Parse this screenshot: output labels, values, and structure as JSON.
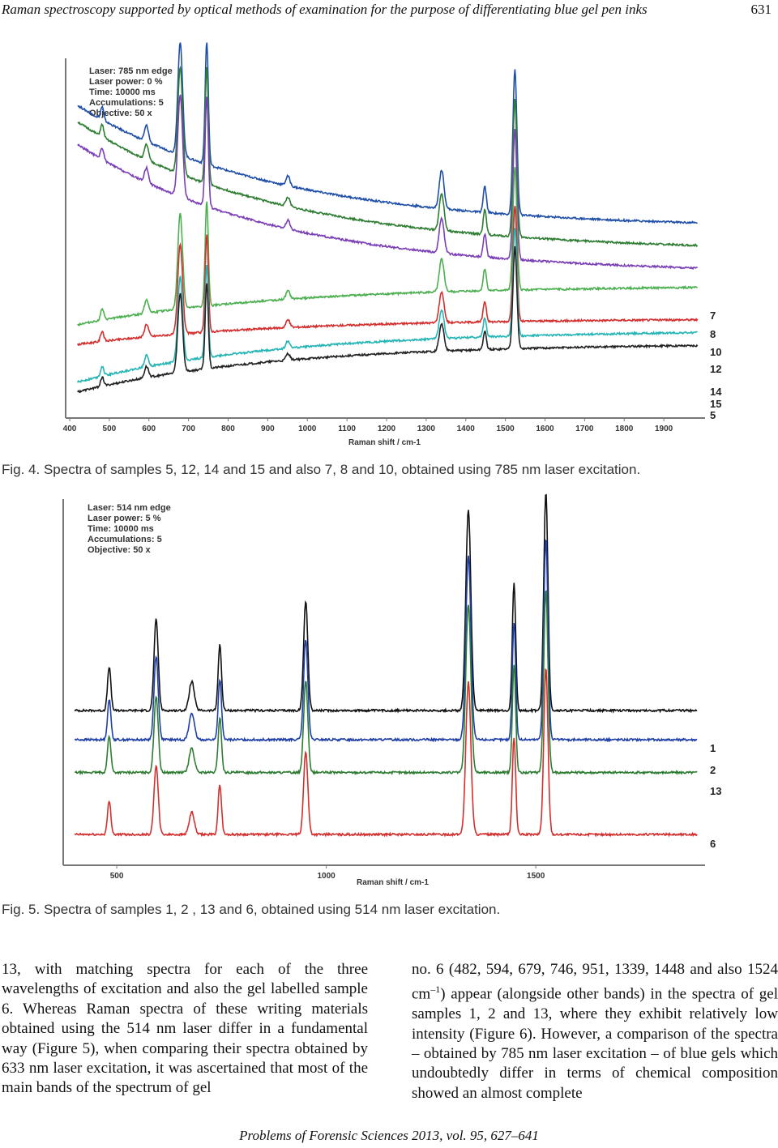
{
  "header": {
    "title": "Raman spectroscopy supported by optical methods of examination for the purpose of differentiating blue gel pen inks",
    "page_number": "631"
  },
  "figures": [
    {
      "caption": "Fig. 4. Spectra of samples 5, 12, 14 and 15 and also 7, 8 and 10, obtained using 785 nm laser excitation.",
      "info_lines": [
        "Laser: 785 nm edge",
        "Laser power: 0 %",
        "Time: 10000 ms",
        "Accumulations: 5",
        "Objective: 50 x"
      ],
      "chart_data": {
        "type": "line",
        "xlabel": "Raman shift / cm-1",
        "ylabel": "",
        "xlim": [
          400,
          2000
        ],
        "xticks": [
          "400",
          "500",
          "600",
          "700",
          "800",
          "900",
          "1000",
          "1100",
          "1200",
          "1300",
          "1400",
          "1500",
          "1600",
          "1700",
          "1800",
          "1900"
        ],
        "grid": false,
        "legend": "labels at right end of traces",
        "series": [
          {
            "name": "7",
            "color": "#1f4fa8",
            "start_y": 0.98,
            "end_y": 0.6
          },
          {
            "name": "8",
            "color": "#2e7d32",
            "start_y": 0.93,
            "end_y": 0.53
          },
          {
            "name": "10",
            "color": "#7b3fb5",
            "start_y": 0.86,
            "end_y": 0.46
          },
          {
            "name": "12",
            "color": "#4caf50",
            "start_y": 0.28,
            "end_y": 0.4
          },
          {
            "name": "14",
            "color": "#d32f2f",
            "start_y": 0.22,
            "end_y": 0.3
          },
          {
            "name": "15",
            "color": "#26b5b5",
            "start_y": 0.1,
            "end_y": 0.26
          },
          {
            "name": "5",
            "color": "#222222",
            "start_y": 0.07,
            "end_y": 0.22
          }
        ],
        "peaks_cm1": [
          482,
          594,
          679,
          746,
          951,
          1339,
          1448,
          1524
        ]
      }
    },
    {
      "caption": "Fig. 5. Spectra of samples 1, 2 , 13 and 6, obtained using 514 nm laser excitation.",
      "info_lines": [
        "Laser: 514 nm edge",
        "Laser power: 5 %",
        "Time: 10000 ms",
        "Accumulations: 5",
        "Objective: 50 x"
      ],
      "chart_data": {
        "type": "line",
        "xlabel": "Raman shift / cm-1",
        "ylabel": "",
        "xlim": [
          380,
          1900
        ],
        "xticks": [
          "500",
          "1000",
          "1500"
        ],
        "grid": false,
        "legend": "labels at right end of traces",
        "series": [
          {
            "name": "1",
            "color": "#111111",
            "baseline": 0.42
          },
          {
            "name": "2",
            "color": "#1f3fa8",
            "baseline": 0.34
          },
          {
            "name": "13",
            "color": "#2e7d32",
            "baseline": 0.25
          },
          {
            "name": "6",
            "color": "#d32f2f",
            "baseline": 0.08
          }
        ],
        "peaks_cm1": [
          482,
          594,
          679,
          746,
          951,
          1339,
          1448,
          1524
        ]
      }
    }
  ],
  "body": {
    "left": "13, with matching spectra for each of the three wavelengths of excitation and also the gel labelled sample 6. Whereas Raman spectra of these writing materials obtained using the 514 nm laser differ in a fundamental way (Figure 5), when comparing their spectra obtained by 633 nm laser excitation, it was ascertained that most of the main bands of the spectrum of gel",
    "right_prefix": "no. 6 (482, 594, 679, 746, 951, 1339, 1448 and also 1524 cm",
    "right_sup": "–1",
    "right_suffix": ") appear (alongside other bands) in the spectra of gel samples 1, 2 and 13, where they exhibit relatively low intensity (Figure 6). However, a comparison of the spectra – obtained by 785 nm laser excitation – of blue gels which undoubtedly differ in terms of chemical composition showed an almost complete"
  },
  "footer": "Problems of Forensic Sciences 2013, vol. 95, 627–641"
}
